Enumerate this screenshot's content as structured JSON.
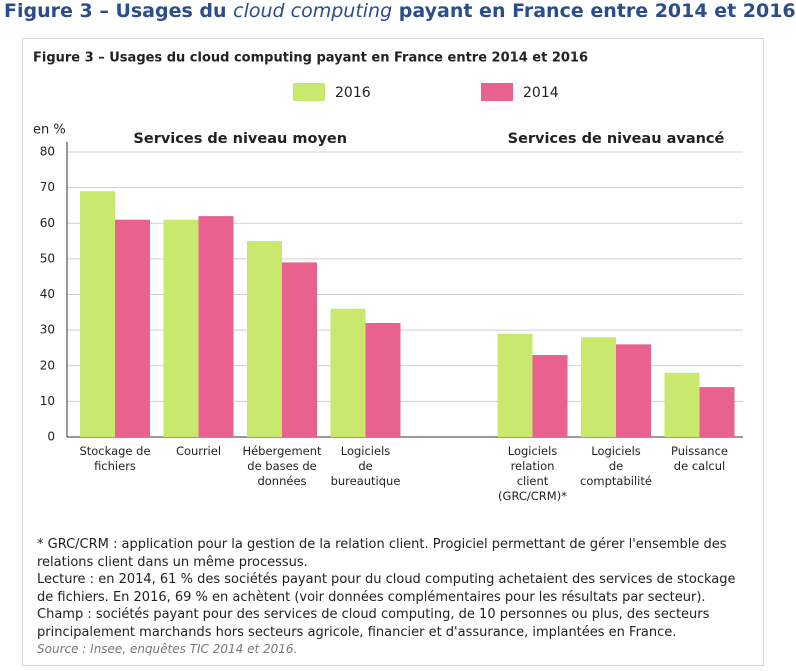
{
  "page_title": {
    "before": "Figure 3 – Usages du ",
    "italic": "cloud computing",
    "after": " payant en France entre 2014 et 2016"
  },
  "chart_data": {
    "type": "bar",
    "title": "Figure 3 – Usages du cloud computing payant en France entre 2014 et 2016",
    "ylabel": "en %",
    "ylim": [
      0,
      80
    ],
    "yticks": [
      0,
      10,
      20,
      30,
      40,
      50,
      60,
      70,
      80
    ],
    "grid": true,
    "series": [
      {
        "name": "2016",
        "color": "#c8e86e"
      },
      {
        "name": "2014",
        "color": "#e8618f"
      }
    ],
    "groups": [
      {
        "name": "Services de niveau moyen",
        "categories": [
          "Stockage de\nfichiers",
          "Courriel",
          "Hébergement\nde bases de\ndonnées",
          "Logiciels\nde\nbureautique"
        ],
        "values": [
          [
            69,
            61,
            55,
            36
          ],
          [
            61,
            62,
            49,
            32
          ]
        ]
      },
      {
        "name": "Services de niveau avancé",
        "categories": [
          "Logiciels\nrelation\nclient\n(GRC/CRM)*",
          "Logiciels\nde\ncomptabilité",
          "Puissance\nde calcul"
        ],
        "values": [
          [
            29,
            28,
            18
          ],
          [
            23,
            26,
            14
          ]
        ]
      }
    ]
  },
  "notes": [
    "* GRC/CRM : application pour la gestion de la relation client. Progiciel permettant de gérer l'ensemble des relations client dans un même processus.",
    "Lecture : en 2014, 61 % des sociétés payant pour du cloud computing achetaient des services de stockage de fichiers. En 2016, 69 % en achètent (voir données complémentaires pour les résultats par secteur).",
    "Champ : sociétés payant pour des services de cloud computing, de 10 personnes ou plus, des secteurs principalement marchands hors secteurs agricole, financier et d'assurance, implantées en France."
  ],
  "source": "Source : Insee, enquêtes TIC 2014 et 2016."
}
